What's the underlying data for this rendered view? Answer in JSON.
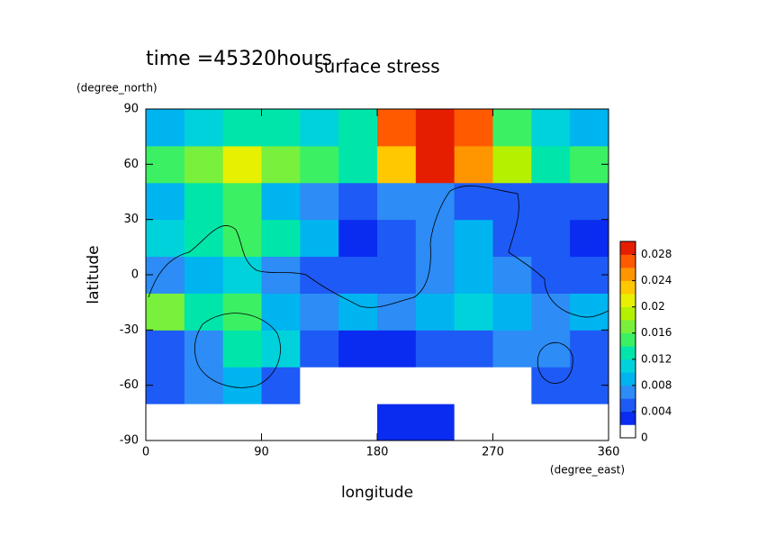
{
  "chart_data": {
    "type": "heatmap",
    "title": "surface stress",
    "subtitle": "time =45320hours",
    "x_label": "longitude",
    "x_unit": "(degree_east)",
    "y_label": "latitude",
    "y_unit": "(degree_north)",
    "xlim": [
      0,
      360
    ],
    "ylim": [
      -90,
      90
    ],
    "xticks": [
      0,
      90,
      180,
      270,
      360
    ],
    "yticks": [
      -90,
      -60,
      -30,
      0,
      30,
      60,
      90
    ],
    "xbins": [
      0,
      30,
      60,
      90,
      120,
      150,
      180,
      210,
      240,
      270,
      300,
      330,
      360
    ],
    "ybins": [
      -90,
      -70,
      -50,
      -30,
      -10,
      10,
      30,
      50,
      70,
      90
    ],
    "z": [
      [
        0,
        0,
        0,
        0,
        0,
        0,
        0.003,
        0.002,
        0,
        0,
        0,
        0
      ],
      [
        0.005,
        0.006,
        0.008,
        0.005,
        0,
        0,
        0,
        0,
        0,
        0,
        0.005,
        0.005
      ],
      [
        0.005,
        0.006,
        0.012,
        0.01,
        0.004,
        0.002,
        0.003,
        0.004,
        0.005,
        0.006,
        0.007,
        0.005
      ],
      [
        0.016,
        0.012,
        0.014,
        0.008,
        0.006,
        0.008,
        0.007,
        0.008,
        0.01,
        0.008,
        0.007,
        0.008
      ],
      [
        0.006,
        0.008,
        0.01,
        0.006,
        0.004,
        0.004,
        0.005,
        0.006,
        0.008,
        0.006,
        0.005,
        0.004
      ],
      [
        0.01,
        0.012,
        0.014,
        0.012,
        0.008,
        0.002,
        0.004,
        0.006,
        0.008,
        0.005,
        0.004,
        0.003
      ],
      [
        0.008,
        0.012,
        0.014,
        0.008,
        0.006,
        0.005,
        0.006,
        0.006,
        0.004,
        0.004,
        0.004,
        0.004
      ],
      [
        0.014,
        0.016,
        0.02,
        0.016,
        0.014,
        0.012,
        0.022,
        0.028,
        0.024,
        0.018,
        0.012,
        0.014
      ],
      [
        0.008,
        0.01,
        0.012,
        0.012,
        0.01,
        0.012,
        0.026,
        0.03,
        0.026,
        0.014,
        0.01,
        0.008
      ]
    ],
    "levels": [
      0,
      0.002,
      0.004,
      0.006,
      0.008,
      0.01,
      0.012,
      0.014,
      0.016,
      0.018,
      0.02,
      0.022,
      0.024,
      0.026,
      0.028,
      0.03
    ],
    "colors": [
      "#ffffff",
      "#0a2bf0",
      "#1e5af5",
      "#2d8cf5",
      "#00b4f0",
      "#00d2dc",
      "#00e6aa",
      "#3cf064",
      "#78f03c",
      "#b4f000",
      "#e6f000",
      "#ffc800",
      "#ff9600",
      "#ff5a00",
      "#e61e00"
    ],
    "colorbar_ticks": [
      0,
      0.004,
      0.008,
      0.012,
      0.016,
      0.02,
      0.024,
      0.028
    ]
  }
}
